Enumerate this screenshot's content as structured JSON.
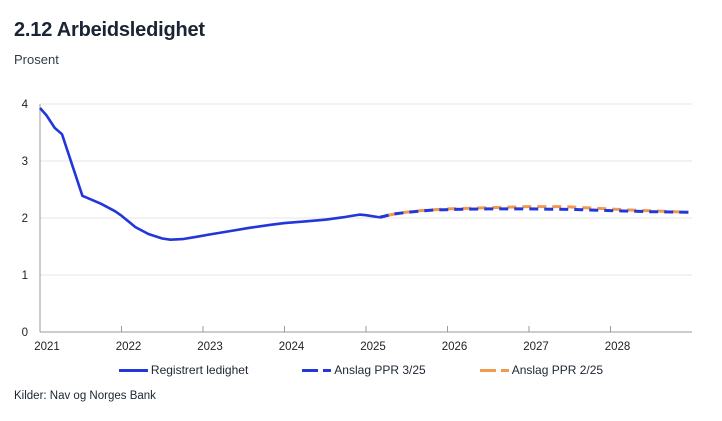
{
  "chart_data": {
    "type": "line",
    "title": "2.12 Arbeidsledighet",
    "subtitle": "Prosent",
    "source": "Kilder: Nav og Norges Bank",
    "xlabel": "",
    "ylabel": "",
    "ylim": [
      0,
      4
    ],
    "y_ticks": [
      0,
      1,
      2,
      3,
      4
    ],
    "x_ticks": [
      2021,
      2022,
      2023,
      2024,
      2025,
      2026,
      2027,
      2028
    ],
    "x_range": [
      2021,
      2029
    ],
    "grid": "horizontal-gridlines",
    "legend_position": "bottom",
    "colors": {
      "axis": "#9a9a9a",
      "gridline": "#e4e4e4",
      "tick_label": "#1f1f1f",
      "blue": "#2236d9",
      "orange": "#f0994f"
    },
    "series": [
      {
        "name": "Registrert ledighet",
        "color": "#2236d9",
        "style": "solid",
        "points": [
          [
            2021.0,
            3.93
          ],
          [
            2021.08,
            3.8
          ],
          [
            2021.18,
            3.58
          ],
          [
            2021.27,
            3.47
          ],
          [
            2021.52,
            2.39
          ],
          [
            2021.6,
            2.34
          ],
          [
            2021.75,
            2.25
          ],
          [
            2021.92,
            2.12
          ],
          [
            2022.0,
            2.04
          ],
          [
            2022.17,
            1.84
          ],
          [
            2022.33,
            1.72
          ],
          [
            2022.5,
            1.64
          ],
          [
            2022.6,
            1.62
          ],
          [
            2022.75,
            1.63
          ],
          [
            2022.92,
            1.67
          ],
          [
            2023.08,
            1.71
          ],
          [
            2023.33,
            1.77
          ],
          [
            2023.58,
            1.83
          ],
          [
            2023.83,
            1.88
          ],
          [
            2024.0,
            1.91
          ],
          [
            2024.25,
            1.94
          ],
          [
            2024.5,
            1.97
          ],
          [
            2024.75,
            2.02
          ],
          [
            2024.92,
            2.06
          ],
          [
            2025.0,
            2.05
          ],
          [
            2025.17,
            2.01
          ]
        ]
      },
      {
        "name": "Anslag PPR 3/25",
        "color": "#2236d9",
        "style": "dashed",
        "points": [
          [
            2025.17,
            2.01
          ],
          [
            2025.33,
            2.07
          ],
          [
            2025.58,
            2.11
          ],
          [
            2025.83,
            2.14
          ],
          [
            2026.08,
            2.15
          ],
          [
            2026.5,
            2.16
          ],
          [
            2027.0,
            2.16
          ],
          [
            2027.5,
            2.15
          ],
          [
            2028.0,
            2.13
          ],
          [
            2028.5,
            2.11
          ],
          [
            2028.96,
            2.1
          ]
        ]
      },
      {
        "name": "Anslag PPR 2/25",
        "color": "#f0994f",
        "style": "dashed",
        "points": [
          [
            2025.17,
            2.02
          ],
          [
            2025.42,
            2.09
          ],
          [
            2025.67,
            2.13
          ],
          [
            2026.0,
            2.16
          ],
          [
            2026.5,
            2.18
          ],
          [
            2027.0,
            2.2
          ],
          [
            2027.42,
            2.2
          ],
          [
            2027.83,
            2.17
          ],
          [
            2028.25,
            2.14
          ],
          [
            2028.96,
            2.1
          ]
        ]
      }
    ]
  }
}
